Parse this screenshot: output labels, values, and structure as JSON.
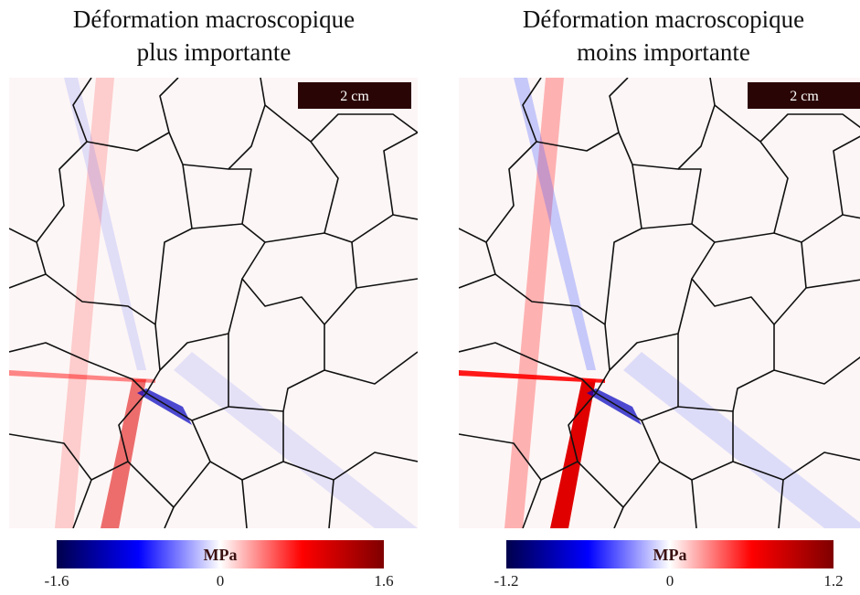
{
  "panels": [
    {
      "title": [
        "Déformation macroscopique",
        "plus importante"
      ],
      "scale_bar": "2 cm",
      "colorbar": {
        "label": "MPa",
        "lim": [
          -1.6,
          1.6
        ],
        "ticks": [
          -1.6,
          0,
          1.6
        ]
      }
    },
    {
      "title": [
        "Déformation macroscopique",
        "moins importante"
      ],
      "scale_bar": "2 cm",
      "colorbar": {
        "label": "MPa",
        "lim": [
          -1.2,
          1.2
        ],
        "ticks": [
          -1.2,
          0,
          1.2
        ]
      }
    }
  ]
}
